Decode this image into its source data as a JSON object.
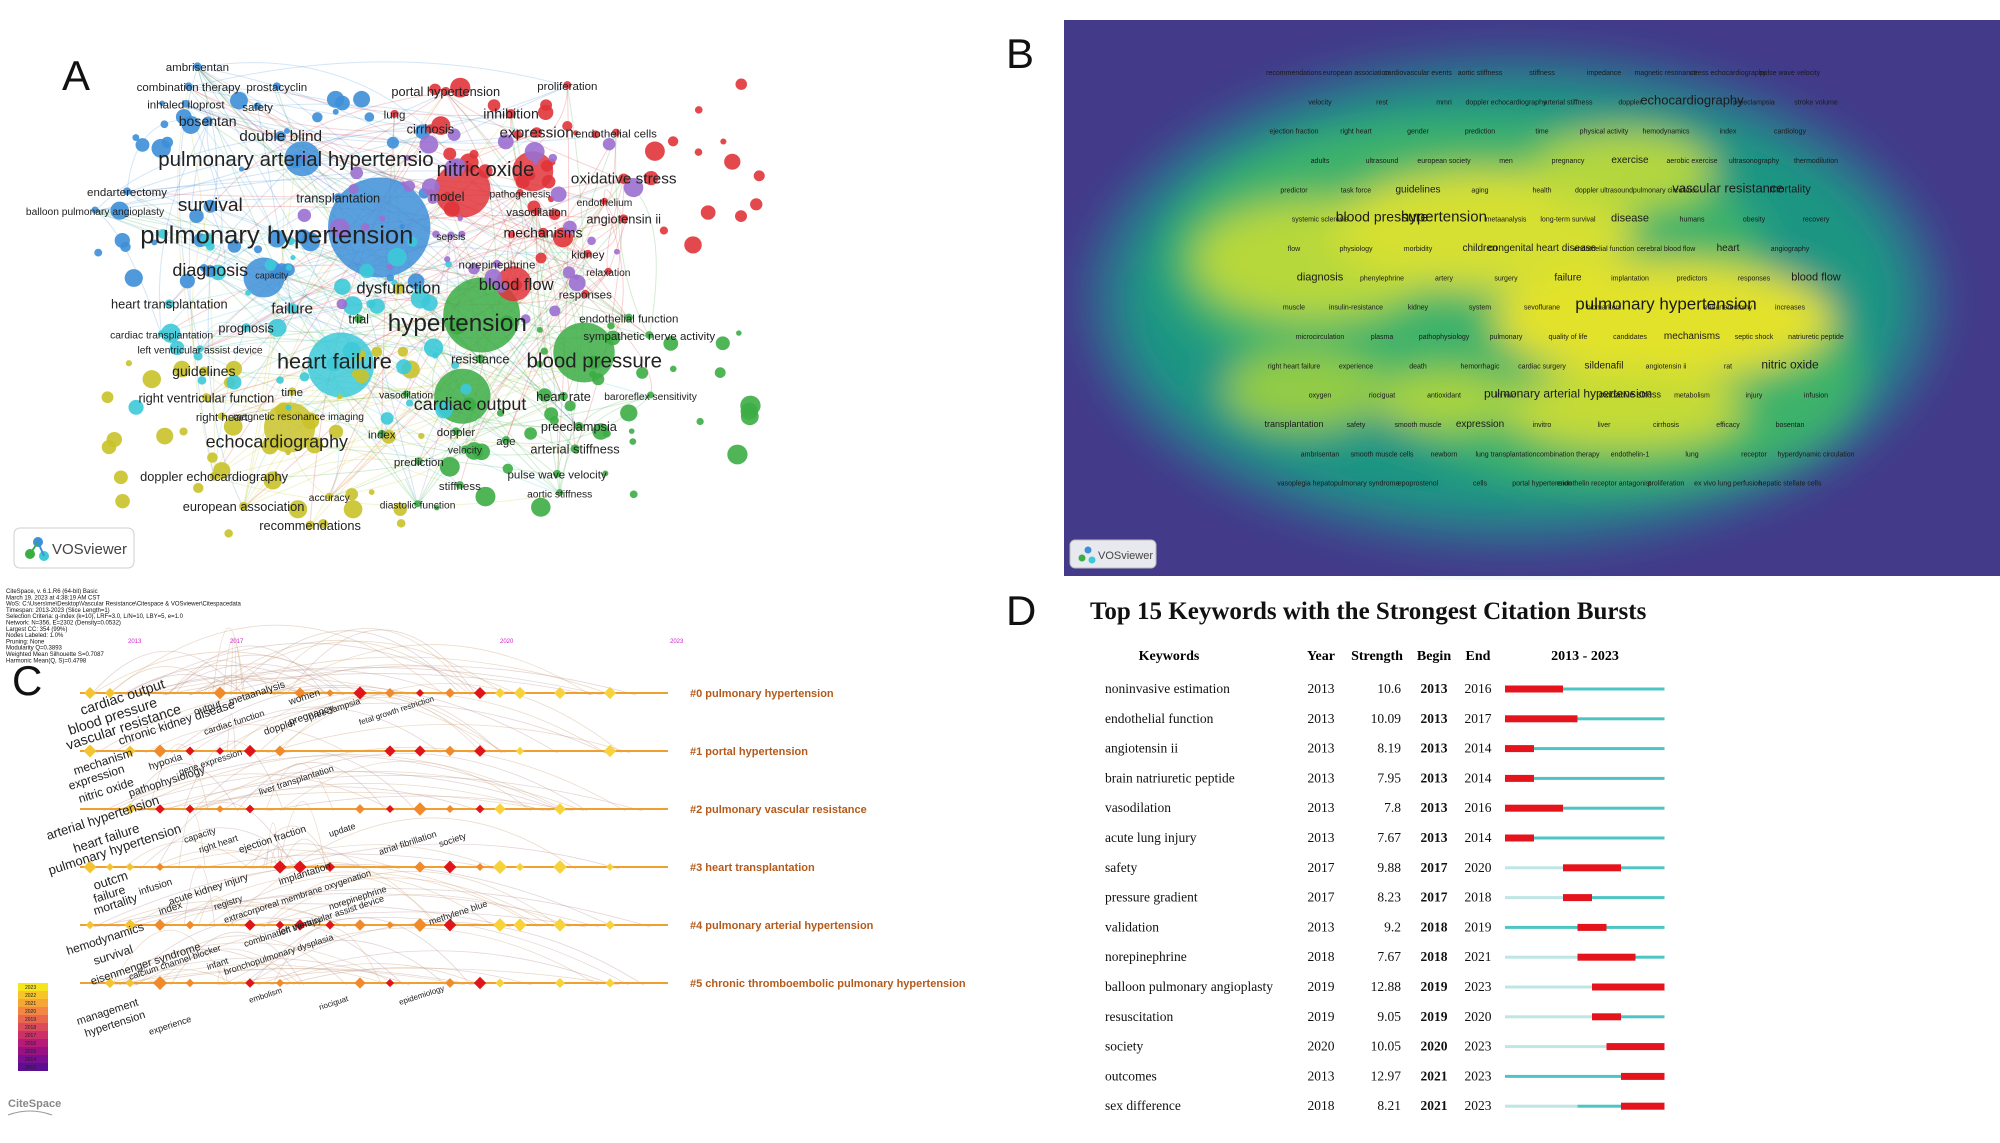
{
  "panels": {
    "a": "A",
    "b": "B",
    "c": "C",
    "d": "D"
  },
  "panel_a": {
    "logo": "VOSviewer",
    "clusters": {
      "blue": "#3d8fd8",
      "red": "#e0343a",
      "green": "#3cad45",
      "yellow": "#c9c22a",
      "cyan": "#3cc9d8",
      "purple": "#9b6fd0"
    },
    "labels": [
      {
        "t": "ambrisentan",
        "c": "blue"
      },
      {
        "t": "combination therapy",
        "c": "blue"
      },
      {
        "t": "prostacyclin",
        "c": "blue"
      },
      {
        "t": "inhaled iloprost",
        "c": "blue"
      },
      {
        "t": "safety",
        "c": "blue"
      },
      {
        "t": "bosentan",
        "c": "blue"
      },
      {
        "t": "double blind",
        "c": "blue"
      },
      {
        "t": "pulmonary arterial hypertensio",
        "c": "blue"
      },
      {
        "t": "endarterectomy",
        "c": "blue"
      },
      {
        "t": "survival",
        "c": "blue"
      },
      {
        "t": "balloon pulmonary angioplasty",
        "c": "blue"
      },
      {
        "t": "pulmonary hypertension",
        "c": "blue"
      },
      {
        "t": "transplantation",
        "c": "blue"
      },
      {
        "t": "diagnosis",
        "c": "blue"
      },
      {
        "t": "capacity",
        "c": "blue"
      },
      {
        "t": "heart transplantation",
        "c": "cyan"
      },
      {
        "t": "cardiac transplantation",
        "c": "cyan"
      },
      {
        "t": "prognosis",
        "c": "cyan"
      },
      {
        "t": "left ventricular assist device",
        "c": "cyan"
      },
      {
        "t": "failure",
        "c": "cyan"
      },
      {
        "t": "heart failure",
        "c": "cyan"
      },
      {
        "t": "portal hypertension",
        "c": "red"
      },
      {
        "t": "proliferation",
        "c": "red"
      },
      {
        "t": "lung",
        "c": "red"
      },
      {
        "t": "inhibition",
        "c": "red"
      },
      {
        "t": "cirrhosis",
        "c": "red"
      },
      {
        "t": "expression",
        "c": "red"
      },
      {
        "t": "endothelial cells",
        "c": "red"
      },
      {
        "t": "nitric oxide",
        "c": "red"
      },
      {
        "t": "oxidative stress",
        "c": "red"
      },
      {
        "t": "model",
        "c": "red"
      },
      {
        "t": "pathogenesis",
        "c": "red"
      },
      {
        "t": "endothelium",
        "c": "red"
      },
      {
        "t": "vasodilation",
        "c": "red"
      },
      {
        "t": "angiotensin ii",
        "c": "red"
      },
      {
        "t": "sepsis",
        "c": "purple"
      },
      {
        "t": "mechanisms",
        "c": "red"
      },
      {
        "t": "kidney",
        "c": "red"
      },
      {
        "t": "norepinephrine",
        "c": "purple"
      },
      {
        "t": "relaxation",
        "c": "red"
      },
      {
        "t": "dysfunction",
        "c": "yellow"
      },
      {
        "t": "blood flow",
        "c": "red"
      },
      {
        "t": "responses",
        "c": "red"
      },
      {
        "t": "trial",
        "c": "green"
      },
      {
        "t": "hypertension",
        "c": "green"
      },
      {
        "t": "endothelial function",
        "c": "green"
      },
      {
        "t": "sympathetic nerve activity",
        "c": "green"
      },
      {
        "t": "guidelines",
        "c": "yellow"
      },
      {
        "t": "resistance",
        "c": "green"
      },
      {
        "t": "blood pressure",
        "c": "green"
      },
      {
        "t": "time",
        "c": "yellow"
      },
      {
        "t": "vasodilation",
        "c": "green"
      },
      {
        "t": "right ventricular function",
        "c": "yellow"
      },
      {
        "t": "cardiac output",
        "c": "green"
      },
      {
        "t": "heart rate",
        "c": "green"
      },
      {
        "t": "baroreflex sensitivity",
        "c": "green"
      },
      {
        "t": "right heart",
        "c": "yellow"
      },
      {
        "t": "magnetic resonance imaging",
        "c": "yellow"
      },
      {
        "t": "preeclampsia",
        "c": "green"
      },
      {
        "t": "echocardiography",
        "c": "yellow"
      },
      {
        "t": "index",
        "c": "green"
      },
      {
        "t": "doppler",
        "c": "green"
      },
      {
        "t": "age",
        "c": "green"
      },
      {
        "t": "velocity",
        "c": "green"
      },
      {
        "t": "arterial stiffness",
        "c": "green"
      },
      {
        "t": "doppler echocardiography",
        "c": "yellow"
      },
      {
        "t": "prediction",
        "c": "green"
      },
      {
        "t": "pulse wave velocity",
        "c": "green"
      },
      {
        "t": "accuracy",
        "c": "yellow"
      },
      {
        "t": "stiffness",
        "c": "green"
      },
      {
        "t": "aortic stiffness",
        "c": "green"
      },
      {
        "t": "european association",
        "c": "yellow"
      },
      {
        "t": "diastolic function",
        "c": "green"
      },
      {
        "t": "recommendations",
        "c": "yellow"
      }
    ]
  },
  "panel_b": {
    "logo": "VOSviewer",
    "terms": [
      "recommendations",
      "european association",
      "cardiovascular events",
      "aortic stiffness",
      "stiffness",
      "impedance",
      "magnetic resonance",
      "stress echocardiography",
      "pulse wave velocity",
      "velocity",
      "rest",
      "mmri",
      "doppler echocardiography",
      "arterial stiffness",
      "doppler",
      "echocardiography",
      "preeclampsia",
      "stroke volume",
      "ejection fraction",
      "right heart",
      "gender",
      "prediction",
      "time",
      "physical activity",
      "hemodynamics",
      "index",
      "cardiology",
      "adults",
      "ultrasound",
      "european society",
      "men",
      "pregnancy",
      "exercise",
      "aerobic exercise",
      "ultrasonography",
      "thermodilution",
      "predictor",
      "task force",
      "guidelines",
      "aging",
      "health",
      "doppler ultrasound",
      "pulmonary circulation",
      "vascular resistance",
      "mortality",
      "systemic sclerosis",
      "blood pressure",
      "hypertension",
      "metaanalysis",
      "long-term survival",
      "disease",
      "humans",
      "obesity",
      "recovery",
      "flow",
      "physiology",
      "morbidity",
      "children",
      "congenital heart disease",
      "endothelial function",
      "cerebral blood flow",
      "heart",
      "angiography",
      "diagnosis",
      "phenylephrine",
      "artery",
      "surgery",
      "failure",
      "implantation",
      "predictors",
      "responses",
      "blood flow",
      "muscle",
      "insulin-resistance",
      "kidney",
      "system",
      "sevoflurane",
      "biomarkers",
      "pulmonary hypertension",
      "endarterectomy",
      "increases",
      "microcirculation",
      "plasma",
      "pathophysiology",
      "pulmonary",
      "quality of life",
      "candidates",
      "mechanisms",
      "septic shock",
      "natriuretic peptide",
      "right heart failure",
      "experience",
      "death",
      "hemorrhagic",
      "cardiac surgery",
      "sildenafil",
      "angiotensin ii",
      "rat",
      "nitric oxide",
      "oxygen",
      "riociguat",
      "antioxidant",
      "in vivo",
      "pulmonary arterial hypertension",
      "oxidative stress",
      "metabolism",
      "injury",
      "infusion",
      "transplantation",
      "safety",
      "smooth muscle",
      "expression",
      "invitro",
      "liver",
      "cirrhosis",
      "efficacy",
      "bosentan",
      "ambrisentan",
      "smooth muscle cells",
      "newborn",
      "lung transplantation",
      "combination therapy",
      "endothelin-1",
      "lung",
      "receptor",
      "hyperdynamic circulation",
      "vasoplegia",
      "hepatopulmonary syndrome",
      "epoprostenol",
      "cells",
      "portal hypertension",
      "endothelin receptor antagonist",
      "proliferation",
      "ex vivo lung perfusion",
      "hepatic stellate cells"
    ]
  },
  "panel_c": {
    "header_lines": [
      "CiteSpace, v. 6.1.R6 (64-bit) Basic",
      "March 19, 2023 at 4:38:19 AM CST",
      "WoS: C:\\Users\\me\\Desktop\\Vascular Resistance\\Citespace & VOSviewer\\Citespacedata",
      "Timespan: 2013-2023 (Slice Length=1)",
      "Selection Criteria: g-index (k=10), LRF=3.0, L/N=10, LBY=5, e=1.0",
      "Network: N=356, E=2302 (Density=0.0532)",
      "Largest CC: 354 (99%)",
      "Nodes Labeled: 1.0%",
      "Pruning: None",
      "Modularity Q=0.3893",
      "Weighted Mean Silhouette S=0.7087",
      "Harmonic Mean(Q, S)=0.4798"
    ],
    "years": [
      "2013",
      "2017",
      "2020",
      "2023"
    ],
    "clusters": [
      "#0 pulmonary hypertension",
      "#1 portal hypertension",
      "#2 pulmonary vascular resistance",
      "#3 heart transplantation",
      "#4 pulmonary arterial hypertension",
      "#5 chronic thromboembolic pulmonary hypertension"
    ],
    "legend_years": [
      "2023",
      "2022",
      "2021",
      "2020",
      "2019",
      "2018",
      "2017",
      "2016",
      "2015",
      "2014",
      "2013"
    ],
    "logo": "CiteSpace",
    "node_labels": [
      "cardiac output",
      "blood pressure",
      "vascular resistance",
      "chronic kidney disease",
      "output",
      "metaanalysis",
      "women",
      "doppler",
      "pregnancy",
      "preeclampsia",
      "cardiac function",
      "fetal growth restriction",
      "mechanism",
      "hypoxia",
      "expression",
      "gene expression",
      "nitric oxide",
      "pathophysiology",
      "liver transplantation",
      "arterial hypertension",
      "heart failure",
      "capacity",
      "right heart",
      "ejection fraction",
      "update",
      "atrial fibrillation",
      "society",
      "pulmonary hypertension",
      "outcm",
      "failure",
      "infusion",
      "acute kidney injury",
      "implantation",
      "mortality",
      "index",
      "registry",
      "extracorporeal membrane oxygenation",
      "left ventricular assist device",
      "norepinephrine",
      "methylene blue",
      "hemodynamics",
      "survival",
      "calcium channel blocker",
      "eisenmenger syndrome",
      "infant",
      "combination therapy",
      "bronchopulmonary dysplasia",
      "epidemiology",
      "management",
      "hypertension",
      "experience",
      "embolism",
      "riociguat"
    ]
  },
  "panel_d": {
    "title": "Top 15 Keywords with the Strongest Citation Bursts",
    "headers": {
      "keywords": "Keywords",
      "year": "Year",
      "strength": "Strength",
      "begin": "Begin",
      "end": "End",
      "range": "2013 - 2023"
    },
    "colors": {
      "burst": "#e5141c",
      "active": "#4fc4c4",
      "inactive": "#bfe5e5"
    },
    "timeline_start": 2013,
    "timeline_end": 2023,
    "rows": [
      {
        "keyword": "noninvasive estimation",
        "year": "2013",
        "strength": "10.6",
        "begin": "2013",
        "end": "2016",
        "y0": 2013,
        "b0": 2013,
        "b1": 2016
      },
      {
        "keyword": "endothelial function",
        "year": "2013",
        "strength": "10.09",
        "begin": "2013",
        "end": "2017",
        "y0": 2013,
        "b0": 2013,
        "b1": 2017
      },
      {
        "keyword": "angiotensin ii",
        "year": "2013",
        "strength": "8.19",
        "begin": "2013",
        "end": "2014",
        "y0": 2013,
        "b0": 2013,
        "b1": 2014
      },
      {
        "keyword": "brain natriuretic peptide",
        "year": "2013",
        "strength": "7.95",
        "begin": "2013",
        "end": "2014",
        "y0": 2013,
        "b0": 2013,
        "b1": 2014
      },
      {
        "keyword": "vasodilation",
        "year": "2013",
        "strength": "7.8",
        "begin": "2013",
        "end": "2016",
        "y0": 2013,
        "b0": 2013,
        "b1": 2016
      },
      {
        "keyword": "acute lung injury",
        "year": "2013",
        "strength": "7.67",
        "begin": "2013",
        "end": "2014",
        "y0": 2013,
        "b0": 2013,
        "b1": 2014
      },
      {
        "keyword": "safety",
        "year": "2017",
        "strength": "9.88",
        "begin": "2017",
        "end": "2020",
        "y0": 2017,
        "b0": 2017,
        "b1": 2020
      },
      {
        "keyword": "pressure gradient",
        "year": "2017",
        "strength": "8.23",
        "begin": "2017",
        "end": "2018",
        "y0": 2017,
        "b0": 2017,
        "b1": 2018
      },
      {
        "keyword": "validation",
        "year": "2013",
        "strength": "9.2",
        "begin": "2018",
        "end": "2019",
        "y0": 2013,
        "b0": 2018,
        "b1": 2019
      },
      {
        "keyword": "norepinephrine",
        "year": "2018",
        "strength": "7.67",
        "begin": "2018",
        "end": "2021",
        "y0": 2018,
        "b0": 2018,
        "b1": 2021
      },
      {
        "keyword": "balloon pulmonary angioplasty",
        "year": "2019",
        "strength": "12.88",
        "begin": "2019",
        "end": "2023",
        "y0": 2019,
        "b0": 2019,
        "b1": 2023
      },
      {
        "keyword": "resuscitation",
        "year": "2019",
        "strength": "9.05",
        "begin": "2019",
        "end": "2020",
        "y0": 2019,
        "b0": 2019,
        "b1": 2020
      },
      {
        "keyword": "society",
        "year": "2020",
        "strength": "10.05",
        "begin": "2020",
        "end": "2023",
        "y0": 2020,
        "b0": 2020,
        "b1": 2023
      },
      {
        "keyword": "outcomes",
        "year": "2013",
        "strength": "12.97",
        "begin": "2021",
        "end": "2023",
        "y0": 2013,
        "b0": 2021,
        "b1": 2023
      },
      {
        "keyword": "sex difference",
        "year": "2018",
        "strength": "8.21",
        "begin": "2021",
        "end": "2023",
        "y0": 2018,
        "b0": 2021,
        "b1": 2023
      }
    ]
  }
}
